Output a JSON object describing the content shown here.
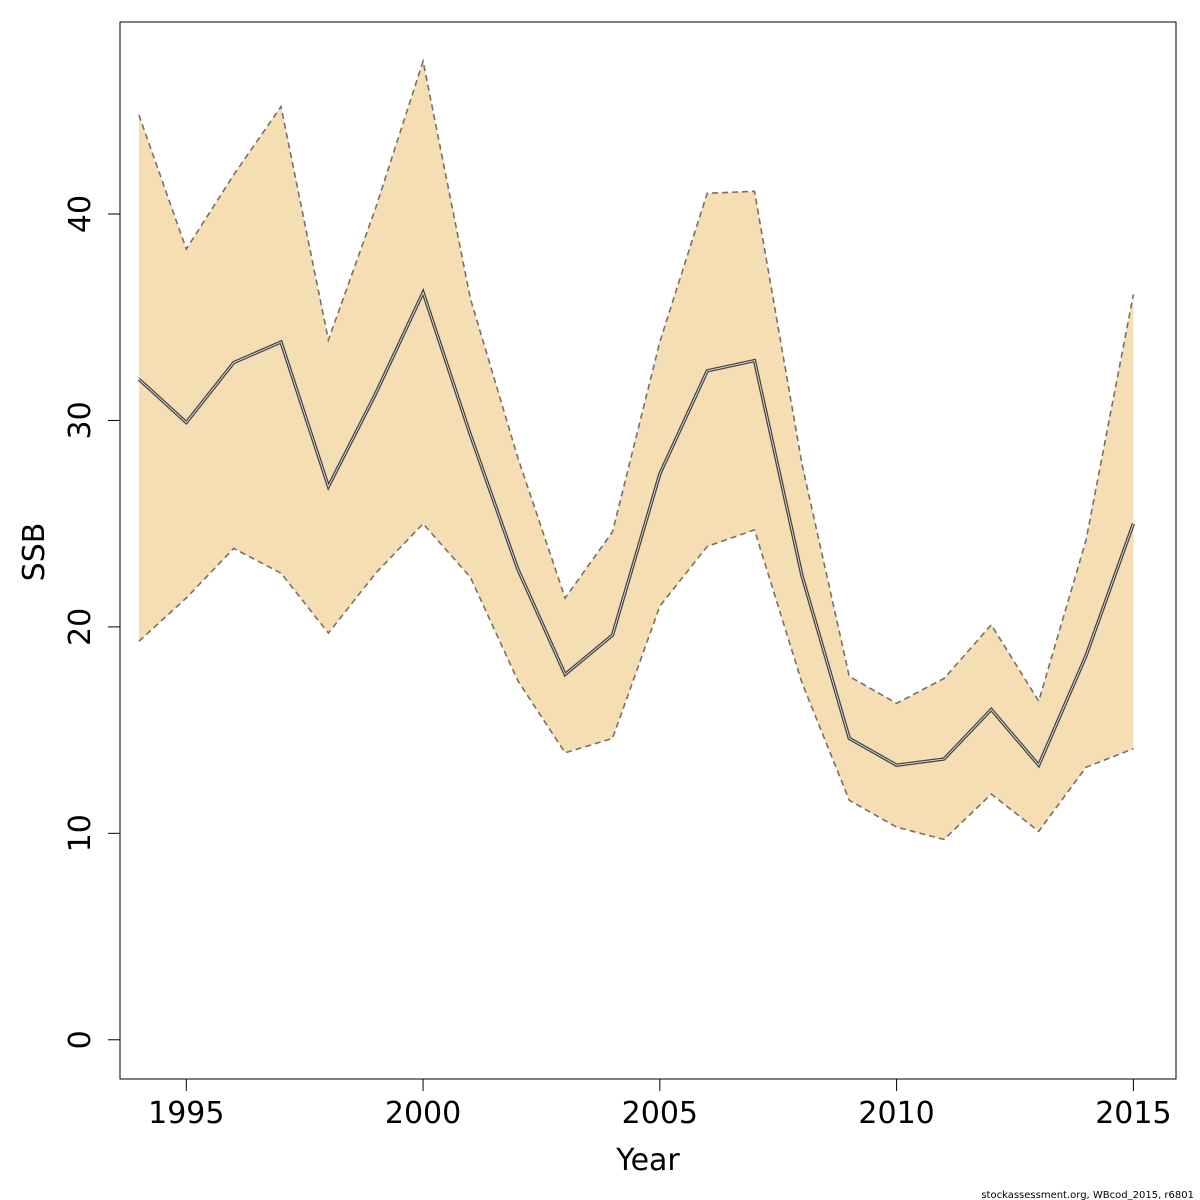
{
  "chart_data": {
    "type": "area",
    "title": "",
    "xlabel": "Year",
    "ylabel": "SSB",
    "x": [
      1994,
      1995,
      1996,
      1997,
      1998,
      1999,
      2000,
      2001,
      2002,
      2003,
      2004,
      2005,
      2006,
      2007,
      2008,
      2009,
      2010,
      2011,
      2012,
      2013,
      2014,
      2015
    ],
    "series": [
      {
        "values": [
          32.0,
          29.9,
          32.8,
          33.8,
          26.8,
          31.3,
          36.2,
          29.3,
          22.8,
          17.7,
          19.6,
          27.4,
          32.4,
          32.9,
          22.5,
          14.6,
          13.3,
          13.6,
          16.0,
          13.3,
          18.6,
          25.0
        ]
      },
      {
        "values": [
          44.8,
          38.3,
          41.9,
          45.2,
          33.9,
          40.3,
          47.4,
          35.9,
          28.2,
          21.4,
          24.6,
          33.8,
          41.0,
          41.1,
          27.9,
          17.6,
          16.3,
          17.5,
          20.1,
          16.4,
          24.2,
          36.1
        ]
      },
      {
        "values": [
          19.3,
          21.4,
          23.8,
          22.6,
          19.7,
          22.6,
          25.0,
          22.4,
          17.4,
          13.9,
          14.6,
          21.0,
          23.9,
          24.7,
          17.3,
          11.6,
          10.3,
          9.7,
          11.9,
          10.1,
          13.2,
          14.1
        ]
      }
    ],
    "xlim": [
      1993.6,
      2015.9
    ],
    "ylim": [
      -1.9,
      49.3
    ],
    "xticks": [
      "1995",
      "2000",
      "2005",
      "2010",
      "2015"
    ],
    "yticks": [
      "0",
      "10",
      "20",
      "30",
      "40"
    ],
    "grid": false
  },
  "colors": {
    "band_fill": "#f5deb3",
    "band_edge": "#7a6f63",
    "median_line": "#444444",
    "axis": "#000000"
  },
  "footnote": "stockassessment.org, WBcod_2015, r6801"
}
